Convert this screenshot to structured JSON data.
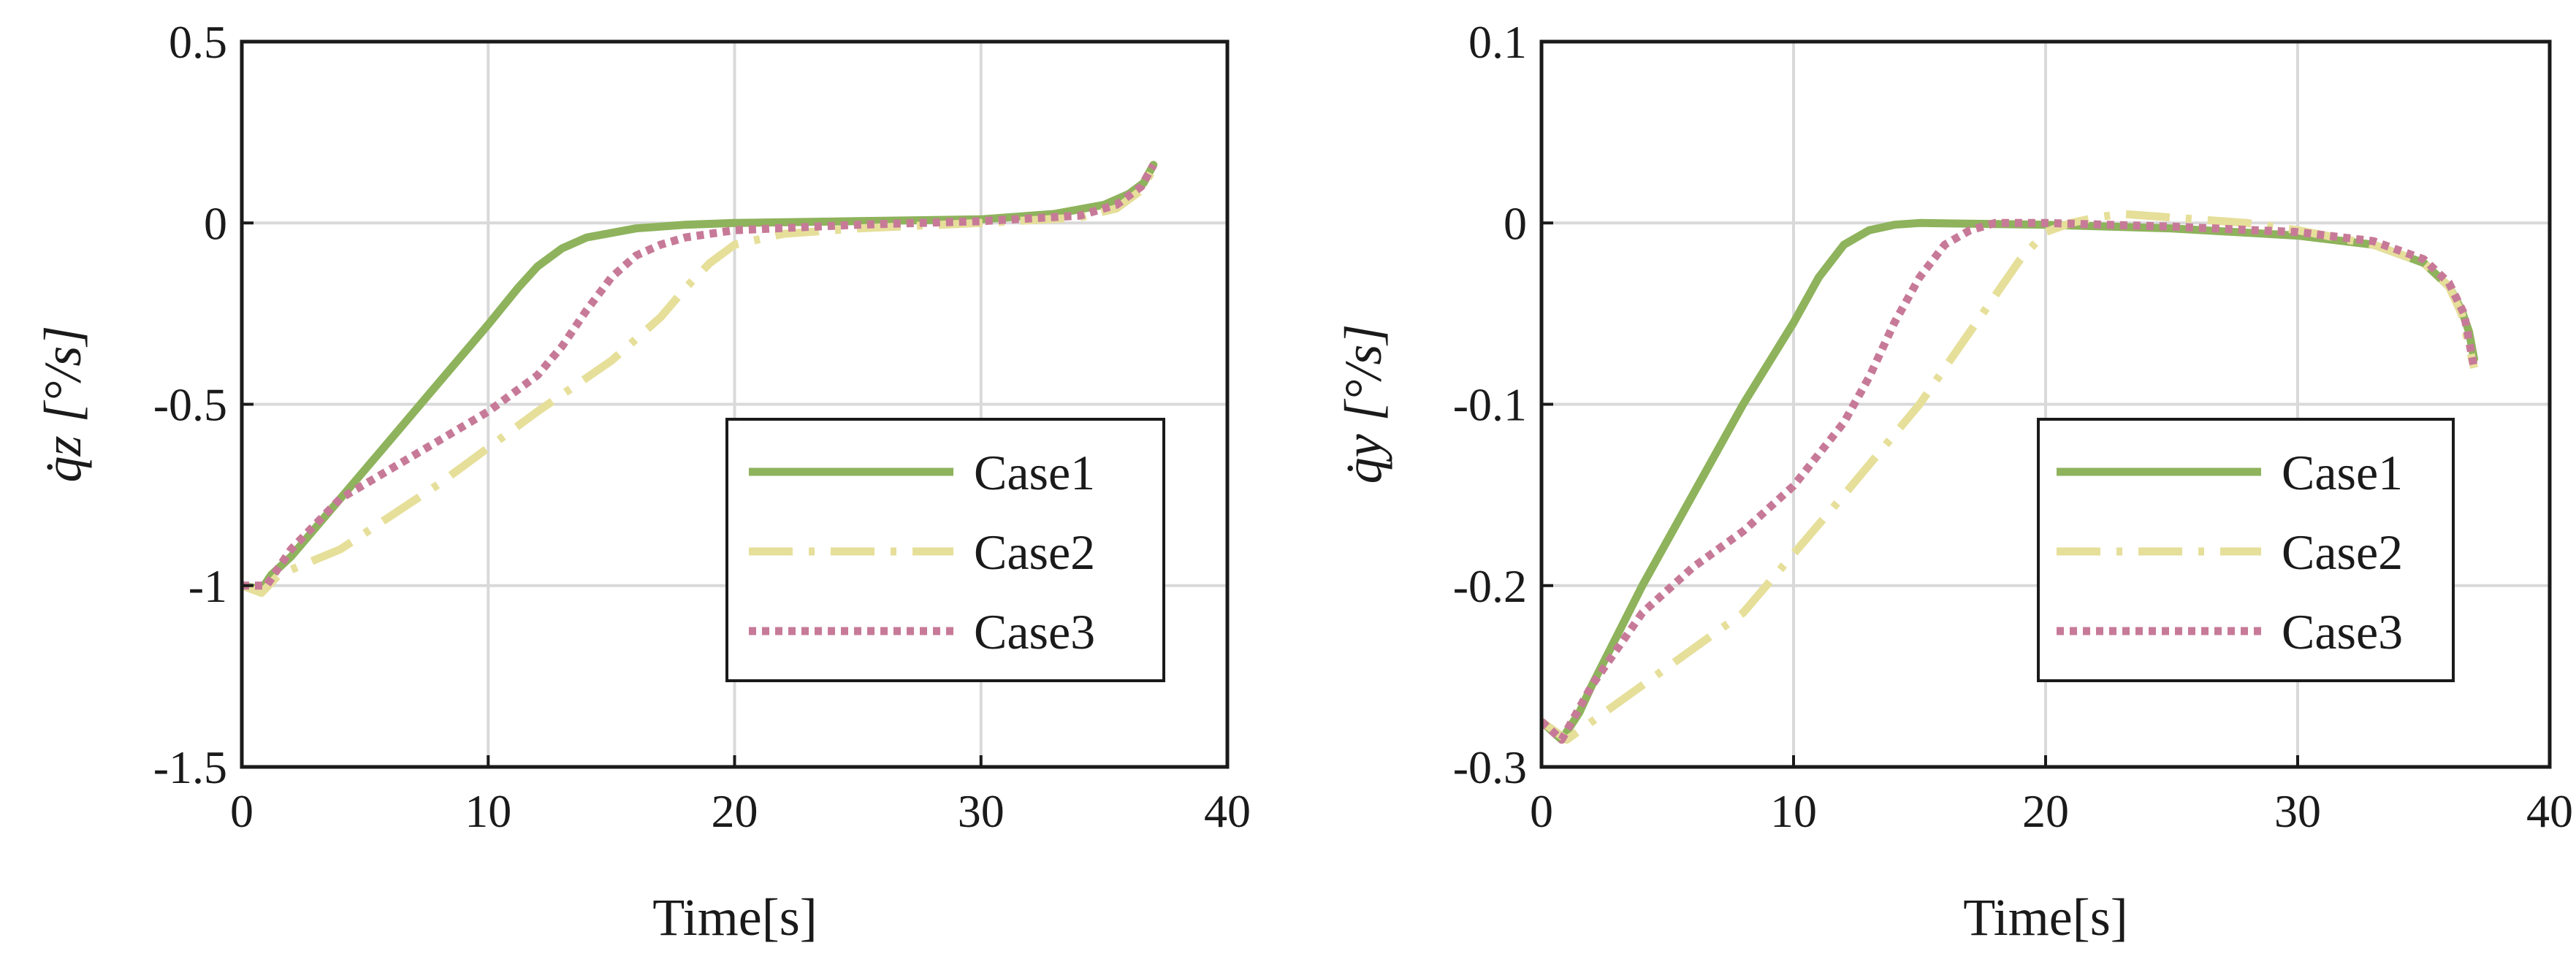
{
  "colors": {
    "case1": "#8eb35c",
    "case2": "#e6df9a",
    "case3": "#c77a98",
    "axis": "#1a1a1a",
    "grid": "#d9d9d9"
  },
  "chart_data": [
    {
      "type": "line",
      "xlabel": "Time[s]",
      "ylabel": "q̇z [°/s]",
      "xlim": [
        0,
        40
      ],
      "ylim": [
        -1.5,
        0.5
      ],
      "xticks": [
        0,
        10,
        20,
        30,
        40
      ],
      "yticks": [
        0.5,
        0,
        -0.5,
        -1,
        -1.5
      ],
      "xtick_labels": [
        "0",
        "10",
        "20",
        "30",
        "40"
      ],
      "ytick_labels": [
        "0.5",
        "0",
        "-0.5",
        "-1",
        "-1.5"
      ],
      "grid": true,
      "legend_position": "bottom-right",
      "series": [
        {
          "name": "Case1",
          "style": "solid",
          "x": [
            0,
            0.8,
            1.2,
            2,
            4,
            6,
            8,
            10,
            11.2,
            12,
            13,
            14,
            16,
            18,
            20,
            25,
            30,
            33,
            35,
            36,
            36.6,
            37
          ],
          "y": [
            -1.0,
            -1.01,
            -0.97,
            -0.92,
            -0.76,
            -0.6,
            -0.44,
            -0.28,
            -0.18,
            -0.12,
            -0.07,
            -0.04,
            -0.015,
            -0.005,
            0.0,
            0.005,
            0.01,
            0.025,
            0.05,
            0.08,
            0.11,
            0.16
          ]
        },
        {
          "name": "Case2",
          "style": "dashdot",
          "x": [
            0,
            0.8,
            1.5,
            4,
            8,
            12,
            15,
            17,
            18,
            19,
            20,
            22,
            25,
            30,
            34,
            35.5,
            36.5,
            37
          ],
          "y": [
            -1.0,
            -1.02,
            -0.97,
            -0.9,
            -0.72,
            -0.52,
            -0.38,
            -0.26,
            -0.18,
            -0.11,
            -0.06,
            -0.03,
            -0.015,
            0.0,
            0.015,
            0.04,
            0.09,
            0.15
          ]
        },
        {
          "name": "Case3",
          "style": "dotted",
          "x": [
            0,
            1,
            2,
            4,
            6,
            8,
            10,
            12,
            13,
            14,
            15,
            16,
            17,
            18,
            20,
            25,
            30,
            34,
            35.5,
            36.5,
            37
          ],
          "y": [
            -1.0,
            -1.0,
            -0.9,
            -0.76,
            -0.68,
            -0.6,
            -0.52,
            -0.42,
            -0.34,
            -0.24,
            -0.15,
            -0.09,
            -0.06,
            -0.04,
            -0.02,
            -0.005,
            0.005,
            0.02,
            0.05,
            0.1,
            0.16
          ]
        }
      ]
    },
    {
      "type": "line",
      "xlabel": "Time[s]",
      "ylabel": "q̇y [°/s]",
      "xlim": [
        0,
        40
      ],
      "ylim": [
        -0.3,
        0.1
      ],
      "xticks": [
        0,
        10,
        20,
        30,
        40
      ],
      "yticks": [
        0.1,
        0,
        -0.1,
        -0.2,
        -0.3
      ],
      "xtick_labels": [
        "0",
        "10",
        "20",
        "30",
        "40"
      ],
      "ytick_labels": [
        "0.1",
        "0",
        "-0.1",
        "-0.2",
        "-0.3"
      ],
      "grid": true,
      "legend_position": "bottom-right",
      "series": [
        {
          "name": "Case1",
          "style": "solid",
          "x": [
            0,
            0.8,
            1.5,
            2,
            4,
            6,
            8,
            10,
            11,
            12,
            13,
            14,
            15,
            20,
            25,
            30,
            33,
            35,
            36,
            36.5,
            36.8,
            37
          ],
          "y": [
            -0.275,
            -0.285,
            -0.27,
            -0.255,
            -0.2,
            -0.15,
            -0.1,
            -0.055,
            -0.03,
            -0.012,
            -0.004,
            -0.001,
            0.0,
            -0.001,
            -0.003,
            -0.007,
            -0.012,
            -0.022,
            -0.035,
            -0.048,
            -0.06,
            -0.075
          ]
        },
        {
          "name": "Case2",
          "style": "dashdot",
          "x": [
            0,
            1,
            2,
            4,
            8,
            12,
            15,
            17,
            18,
            19,
            20,
            21,
            22,
            23,
            25,
            28,
            30,
            33,
            35,
            36,
            36.5,
            37
          ],
          "y": [
            -0.275,
            -0.285,
            -0.275,
            -0.255,
            -0.215,
            -0.15,
            -0.1,
            -0.06,
            -0.04,
            -0.02,
            -0.005,
            0.0,
            0.003,
            0.005,
            0.003,
            0.0,
            -0.004,
            -0.012,
            -0.022,
            -0.035,
            -0.05,
            -0.08
          ]
        },
        {
          "name": "Case3",
          "style": "dotted",
          "x": [
            0,
            0.8,
            2,
            4,
            6,
            8,
            10,
            12,
            13,
            14,
            15,
            16,
            17,
            18,
            20,
            25,
            30,
            33,
            35,
            36,
            36.6,
            37
          ],
          "y": [
            -0.275,
            -0.285,
            -0.255,
            -0.215,
            -0.19,
            -0.17,
            -0.145,
            -0.11,
            -0.085,
            -0.055,
            -0.03,
            -0.012,
            -0.004,
            0.0,
            0.0,
            -0.002,
            -0.005,
            -0.01,
            -0.02,
            -0.033,
            -0.05,
            -0.08
          ]
        }
      ]
    }
  ]
}
